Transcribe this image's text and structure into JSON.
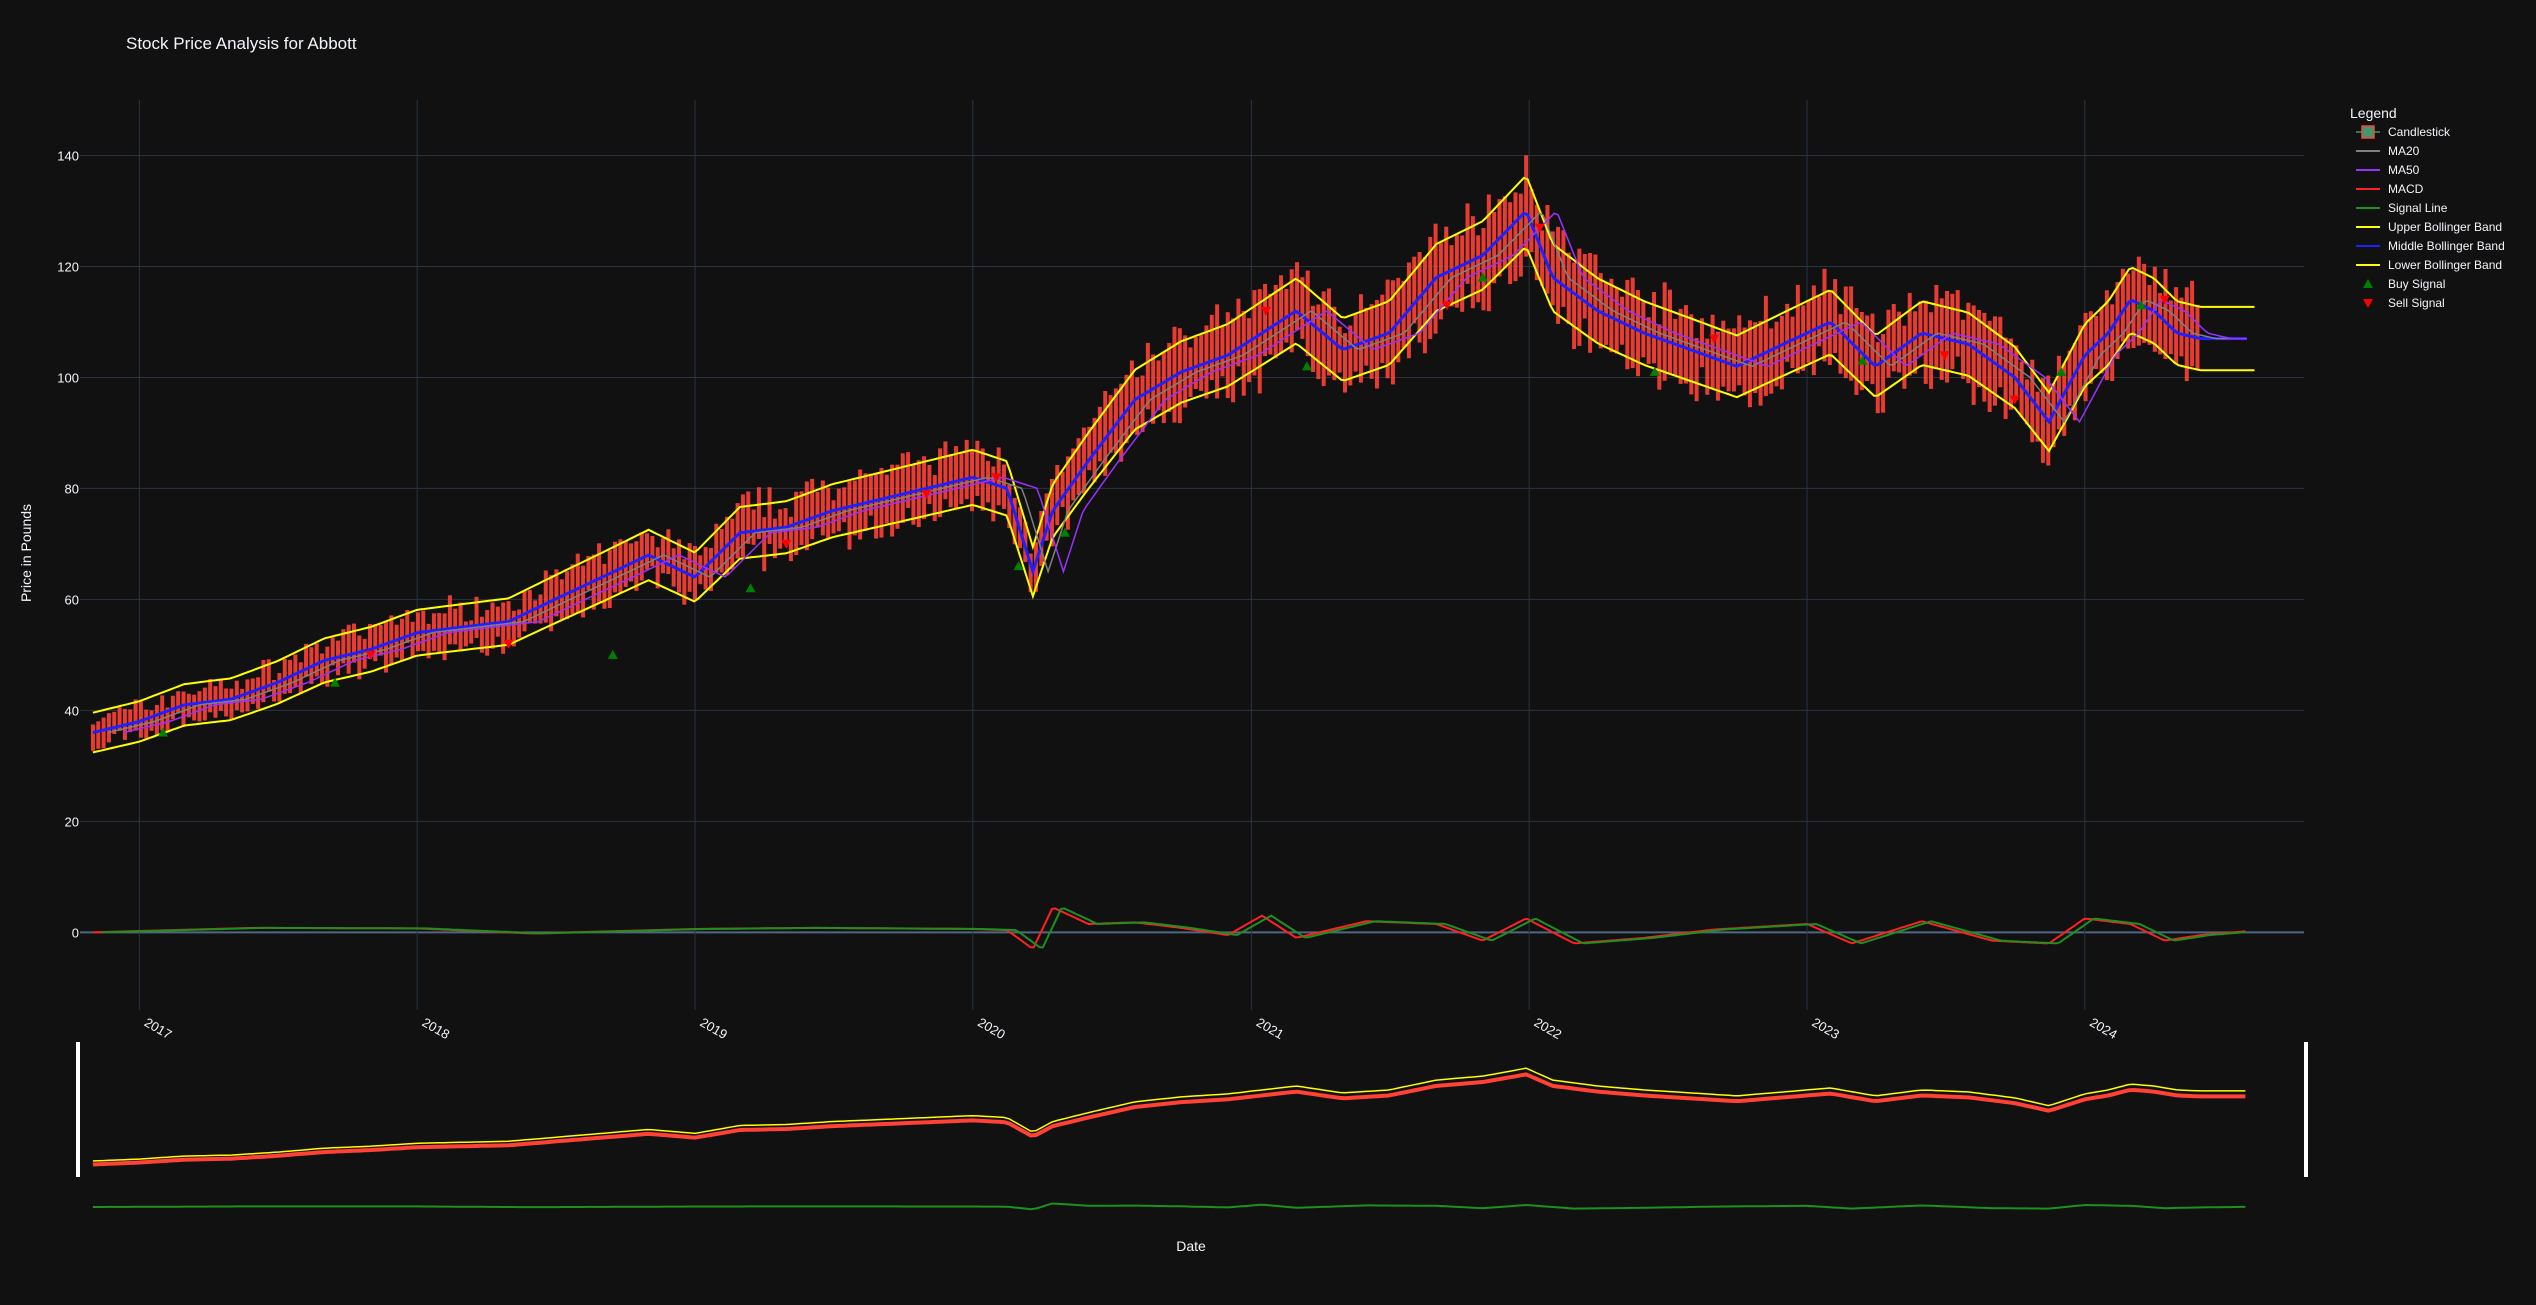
{
  "chart_data": {
    "type": "line",
    "title": "Stock Price Analysis for Abbott",
    "xlabel": "Date",
    "ylabel": "Price in Pounds",
    "xlim": [
      "2016-10-15",
      "2024-10-15"
    ],
    "ylim": [
      -14,
      150
    ],
    "yticks": [
      0,
      20,
      40,
      60,
      80,
      100,
      120,
      140
    ],
    "xticks": [
      {
        "date": "2017-01-01",
        "label": "2017"
      },
      {
        "date": "2018-01-01",
        "label": "2018"
      },
      {
        "date": "2019-01-01",
        "label": "2019"
      },
      {
        "date": "2020-01-01",
        "label": "2020"
      },
      {
        "date": "2021-01-01",
        "label": "2021"
      },
      {
        "date": "2022-01-01",
        "label": "2022"
      },
      {
        "date": "2023-01-01",
        "label": "2023"
      },
      {
        "date": "2024-01-01",
        "label": "2024"
      }
    ],
    "grid": true,
    "legend": {
      "title": "Legend",
      "position": "right",
      "entries": [
        {
          "name": "Candlestick",
          "symbol": "candle",
          "color": "#ff4136"
        },
        {
          "name": "MA20",
          "symbol": "line",
          "color": "#808080"
        },
        {
          "name": "MA50",
          "symbol": "line",
          "color": "#9b30ff"
        },
        {
          "name": "MACD",
          "symbol": "line",
          "color": "#ff2020"
        },
        {
          "name": "Signal Line",
          "symbol": "line",
          "color": "#1f8f1f"
        },
        {
          "name": "Upper Bollinger Band",
          "symbol": "line",
          "color": "#ffff00"
        },
        {
          "name": "Middle Bollinger Band",
          "symbol": "line",
          "color": "#2020ff"
        },
        {
          "name": "Lower Bollinger Band",
          "symbol": "line",
          "color": "#ffff00"
        },
        {
          "name": "Buy Signal",
          "symbol": "triangle-up",
          "color": "#008000"
        },
        {
          "name": "Sell Signal",
          "symbol": "triangle-down",
          "color": "#ff0000"
        }
      ]
    },
    "price": {
      "x": [
        "2016-11-01",
        "2017-01-01",
        "2017-03-01",
        "2017-05-01",
        "2017-07-01",
        "2017-09-01",
        "2017-11-01",
        "2018-01-01",
        "2018-03-01",
        "2018-05-01",
        "2018-07-01",
        "2018-09-01",
        "2018-11-01",
        "2019-01-01",
        "2019-03-01",
        "2019-05-01",
        "2019-07-01",
        "2019-09-01",
        "2019-11-01",
        "2020-01-01",
        "2020-02-15",
        "2020-03-20",
        "2020-04-15",
        "2020-06-01",
        "2020-08-01",
        "2020-10-01",
        "2020-12-01",
        "2021-01-15",
        "2021-03-01",
        "2021-05-01",
        "2021-07-01",
        "2021-09-01",
        "2021-11-01",
        "2021-12-28",
        "2022-02-01",
        "2022-04-01",
        "2022-06-01",
        "2022-08-01",
        "2022-10-01",
        "2022-12-01",
        "2023-02-01",
        "2023-04-01",
        "2023-06-01",
        "2023-08-01",
        "2023-10-01",
        "2023-11-15",
        "2024-01-01",
        "2024-02-01",
        "2024-03-01",
        "2024-04-01",
        "2024-05-01",
        "2024-06-01",
        "2024-07-01",
        "2024-08-01"
      ],
      "close": [
        36,
        38,
        41,
        42,
        45,
        49,
        51,
        54,
        55,
        56,
        60,
        64,
        68,
        64,
        72,
        73,
        76,
        78,
        80,
        82,
        80,
        65,
        76,
        85,
        96,
        101,
        104,
        108,
        112,
        105,
        108,
        118,
        122,
        130,
        118,
        112,
        108,
        105,
        102,
        106,
        110,
        102,
        108,
        106,
        100,
        92,
        104,
        108,
        114,
        112,
        108,
        107,
        107,
        107
      ]
    },
    "macd": {
      "x": [
        "2016-11-01",
        "2017-06-01",
        "2018-01-01",
        "2018-06-01",
        "2019-01-01",
        "2019-06-01",
        "2020-01-01",
        "2020-02-15",
        "2020-03-20",
        "2020-04-15",
        "2020-06-01",
        "2020-08-01",
        "2020-10-01",
        "2020-12-01",
        "2021-01-15",
        "2021-03-01",
        "2021-06-01",
        "2021-09-01",
        "2021-11-01",
        "2021-12-28",
        "2022-03-01",
        "2022-06-01",
        "2022-09-01",
        "2023-01-01",
        "2023-03-01",
        "2023-06-01",
        "2023-09-01",
        "2023-11-15",
        "2024-01-01",
        "2024-03-01",
        "2024-04-15",
        "2024-06-01",
        "2024-08-01"
      ],
      "value": [
        0,
        0.8,
        0.7,
        -0.2,
        0.6,
        0.8,
        0.6,
        0.4,
        -3,
        4.5,
        1.5,
        1.8,
        0.8,
        -0.5,
        3,
        -1,
        2,
        1.5,
        -1.5,
        2.5,
        -2,
        -1,
        0.5,
        1.5,
        -2,
        2,
        -1.5,
        -2,
        2.5,
        1.5,
        -1.5,
        -0.5,
        0.2
      ]
    },
    "buy_signals": {
      "x": [
        "2017-02-01",
        "2017-09-15",
        "2018-09-15",
        "2019-03-15",
        "2020-03-01",
        "2020-05-01",
        "2021-03-15",
        "2021-11-01",
        "2022-06-15",
        "2023-03-15",
        "2023-12-01",
        "2024-03-15"
      ],
      "y": [
        36,
        45,
        50,
        62,
        66,
        72,
        102,
        118,
        101,
        103,
        101,
        113
      ]
    },
    "sell_signals": {
      "x": [
        "2017-11-01",
        "2018-05-01",
        "2019-05-01",
        "2019-11-01",
        "2020-02-01",
        "2021-01-20",
        "2021-09-15",
        "2022-01-15",
        "2022-09-01",
        "2023-07-01",
        "2023-10-01",
        "2024-04-15"
      ],
      "y": [
        50,
        52,
        70,
        79,
        82,
        112,
        113,
        127,
        107,
        104,
        96,
        114
      ]
    },
    "range_slider": true
  }
}
